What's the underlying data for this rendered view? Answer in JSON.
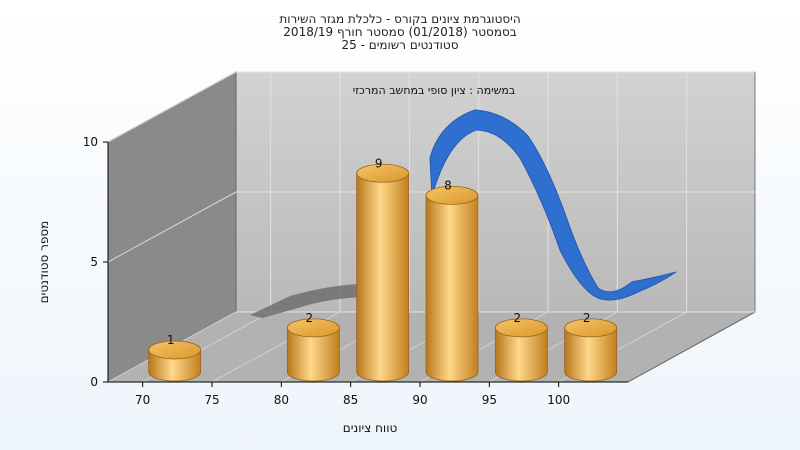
{
  "chart_data": {
    "type": "bar",
    "title_lines": [
      "היסטוגרמת ציונים בקורס - כלכלת מגזר השירות",
      "בסמסטר  (01/2018)  סמסטר חורף 2018/19",
      "סטודנטים רשומים - 25"
    ],
    "subtitle": "במשימה : ציון סופי במחשב המרכזי",
    "xlabel": "טווח ציונים",
    "ylabel": "מספר סטודנטים",
    "x_ticks": [
      "70",
      "75",
      "80",
      "85",
      "90",
      "95",
      "100"
    ],
    "y_ticks": [
      "0",
      "5",
      "10"
    ],
    "ylim": [
      0,
      10
    ],
    "categories": [
      "70",
      "80",
      "85",
      "90",
      "95",
      "100"
    ],
    "values": [
      1,
      2,
      9,
      8,
      2,
      2
    ],
    "value_labels": [
      "1",
      "2",
      "9",
      "8",
      "2",
      "2"
    ],
    "bar_color": "#e8a538",
    "curve_color": "#2f6fd0",
    "back_wall_color": "#c4c4c4",
    "side_wall_color": "#8a8a8a",
    "floor_color": "#b2b2b2",
    "grid": true,
    "legend": "none"
  }
}
